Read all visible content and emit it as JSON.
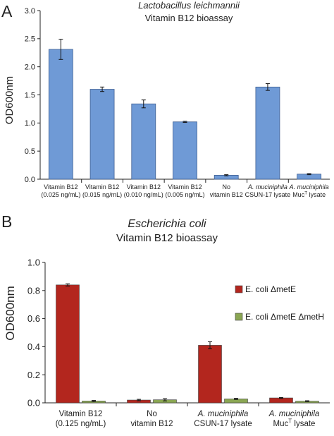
{
  "chart_data": [
    {
      "panel_label": "A",
      "type": "bar",
      "title": "Lactobacillus leichmannii",
      "subtitle": "Vitamin B12 bioassay",
      "ylabel": "OD600nm",
      "xlabel": "",
      "ylim": [
        0,
        3
      ],
      "yticks": [
        "0.0",
        "0.5",
        "1.0",
        "1.5",
        "2.0",
        "2.5",
        "3.0"
      ],
      "grid": false,
      "colors": {
        "bar": "#6f9ad6",
        "bar_edge": "#3f5f92"
      },
      "categories": [
        {
          "lines": [
            "Vitamin B12",
            "(0.025 ng/mL)"
          ]
        },
        {
          "lines": [
            "Vitamin B12",
            "(0.015 ng/mL)"
          ]
        },
        {
          "lines": [
            "Vitamin B12",
            "(0.010 ng/mL)"
          ]
        },
        {
          "lines": [
            "Vitamin B12",
            "(0.005 ng/mL)"
          ]
        },
        {
          "lines": [
            "No",
            "vitamin B12"
          ]
        },
        {
          "lines": [
            "A. muciniphila",
            "CSUN-17 lysate"
          ]
        },
        {
          "lines": [
            "A. muciniphila",
            "Muc",
            "T",
            " lysate"
          ]
        }
      ],
      "values": [
        2.31,
        1.6,
        1.34,
        1.02,
        0.07,
        1.64,
        0.09
      ],
      "errors": [
        0.18,
        0.04,
        0.07,
        0.01,
        0.01,
        0.06,
        0.01
      ]
    },
    {
      "panel_label": "B",
      "type": "bar",
      "title": "Escherichia coli",
      "subtitle": "Vitamin B12 bioassay",
      "ylabel": "OD600nm",
      "xlabel": "",
      "ylim": [
        0,
        1
      ],
      "yticks": [
        "0.0",
        "0.2",
        "0.4",
        "0.6",
        "0.8",
        "1.0"
      ],
      "grid": false,
      "legend_position": "right",
      "categories": [
        {
          "lines": [
            "Vitamin B12",
            "(0.125 ng/mL)"
          ]
        },
        {
          "lines": [
            "No",
            "vitamin B12"
          ]
        },
        {
          "lines": [
            "A. muciniphila",
            "CSUN-17 lysate"
          ]
        },
        {
          "lines": [
            "A. muciniphila",
            "Muc",
            "T",
            " lysate"
          ]
        }
      ],
      "series": [
        {
          "name": "E. coli ΔmetE",
          "color": "#b3261e",
          "values": [
            0.84,
            0.02,
            0.41,
            0.035
          ],
          "errors": [
            0.008,
            0.005,
            0.025,
            0.003
          ]
        },
        {
          "name": "E. coli ΔmetE ΔmetH",
          "color": "#8aa653",
          "values": [
            0.013,
            0.022,
            0.028,
            0.012
          ],
          "errors": [
            0.004,
            0.008,
            0.004,
            0.003
          ]
        }
      ]
    }
  ]
}
